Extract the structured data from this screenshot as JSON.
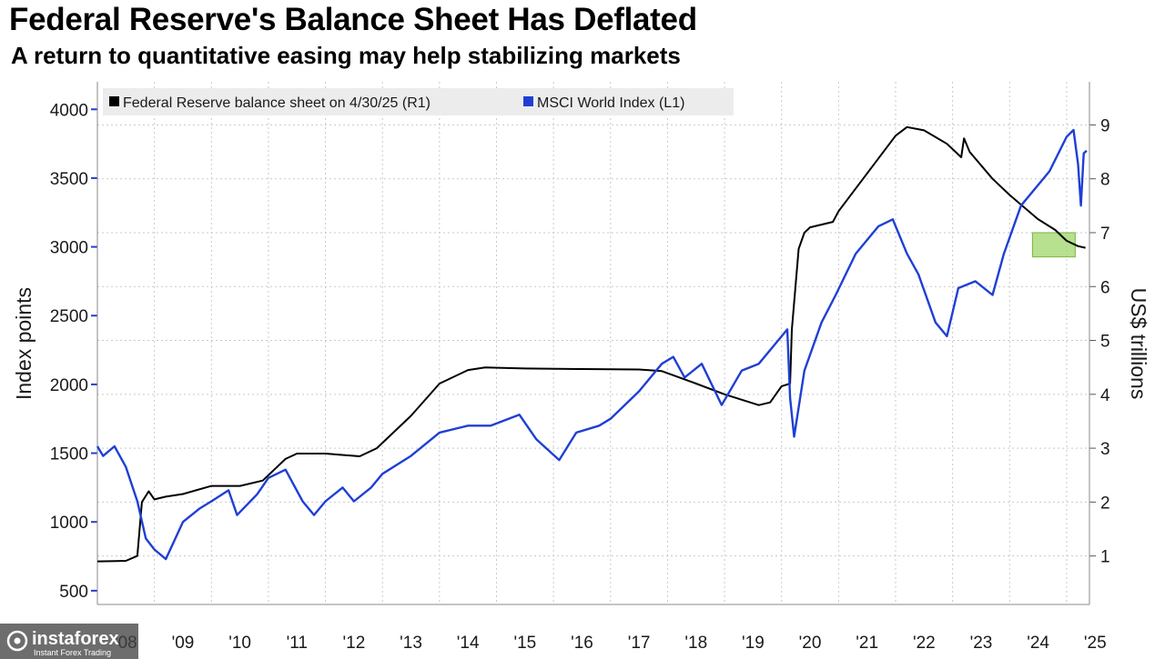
{
  "header": {
    "title": "Federal Reserve's Balance Sheet Has Deflated",
    "subtitle": "A return to quantitative easing may help stabilizing markets"
  },
  "watermark": {
    "brand": "instaforex",
    "tagline": "Instant Forex Trading"
  },
  "chart_data": {
    "type": "line",
    "xlabel": "",
    "x_tick_labels": [
      "'08",
      "'09",
      "'10",
      "'11",
      "'12",
      "'13",
      "'14",
      "'15",
      "'16",
      "'17",
      "'18",
      "'19",
      "'20",
      "'21",
      "'22",
      "'23",
      "'24",
      "'25"
    ],
    "x_range": [
      2008.0,
      2025.4
    ],
    "left_axis": {
      "label": "Index points",
      "range": [
        400,
        4200
      ],
      "ticks": [
        "500",
        "1000",
        "1500",
        "2000",
        "2500",
        "3000",
        "3500",
        "4000"
      ]
    },
    "right_axis": {
      "label": "US$ trillions",
      "range": [
        0.1,
        9.8
      ],
      "ticks": [
        "1",
        "2",
        "3",
        "4",
        "5",
        "6",
        "7",
        "8",
        "9"
      ]
    },
    "grid": true,
    "legend_placement": "top-left",
    "highlight": {
      "x_range": [
        2024.4,
        2025.15
      ],
      "right_value_range": [
        6.55,
        7.0
      ],
      "color": "#9fd66a"
    },
    "series": [
      {
        "name": "Federal Reserve balance sheet on 4/30/25 (R1)",
        "axis": "right",
        "color": "#000000",
        "points": [
          [
            2008.0,
            0.9
          ],
          [
            2008.5,
            0.91
          ],
          [
            2008.7,
            1.0
          ],
          [
            2008.78,
            2.0
          ],
          [
            2008.9,
            2.2
          ],
          [
            2009.0,
            2.05
          ],
          [
            2009.2,
            2.1
          ],
          [
            2009.5,
            2.15
          ],
          [
            2010.0,
            2.3
          ],
          [
            2010.5,
            2.3
          ],
          [
            2010.9,
            2.4
          ],
          [
            2011.3,
            2.8
          ],
          [
            2011.5,
            2.9
          ],
          [
            2012.0,
            2.9
          ],
          [
            2012.6,
            2.85
          ],
          [
            2012.9,
            3.0
          ],
          [
            2013.5,
            3.6
          ],
          [
            2014.0,
            4.2
          ],
          [
            2014.5,
            4.45
          ],
          [
            2014.8,
            4.5
          ],
          [
            2015.5,
            4.48
          ],
          [
            2016.5,
            4.47
          ],
          [
            2017.5,
            4.46
          ],
          [
            2017.9,
            4.43
          ],
          [
            2018.5,
            4.2
          ],
          [
            2019.0,
            4.0
          ],
          [
            2019.6,
            3.8
          ],
          [
            2019.8,
            3.85
          ],
          [
            2020.0,
            4.15
          ],
          [
            2020.15,
            4.2
          ],
          [
            2020.18,
            5.2
          ],
          [
            2020.3,
            6.7
          ],
          [
            2020.4,
            7.0
          ],
          [
            2020.5,
            7.1
          ],
          [
            2020.9,
            7.2
          ],
          [
            2021.0,
            7.4
          ],
          [
            2021.5,
            8.1
          ],
          [
            2022.0,
            8.8
          ],
          [
            2022.2,
            8.96
          ],
          [
            2022.5,
            8.9
          ],
          [
            2022.9,
            8.65
          ],
          [
            2023.15,
            8.4
          ],
          [
            2023.2,
            8.75
          ],
          [
            2023.3,
            8.5
          ],
          [
            2023.7,
            8.0
          ],
          [
            2024.0,
            7.7
          ],
          [
            2024.5,
            7.25
          ],
          [
            2024.8,
            7.05
          ],
          [
            2025.0,
            6.85
          ],
          [
            2025.2,
            6.75
          ],
          [
            2025.33,
            6.72
          ]
        ]
      },
      {
        "name": "MSCI World Index  (L1)",
        "axis": "left",
        "color": "#1f3fd4",
        "points": [
          [
            2008.0,
            1550
          ],
          [
            2008.1,
            1480
          ],
          [
            2008.3,
            1550
          ],
          [
            2008.5,
            1400
          ],
          [
            2008.7,
            1150
          ],
          [
            2008.85,
            880
          ],
          [
            2009.0,
            800
          ],
          [
            2009.2,
            730
          ],
          [
            2009.5,
            1000
          ],
          [
            2009.8,
            1100
          ],
          [
            2010.0,
            1150
          ],
          [
            2010.3,
            1230
          ],
          [
            2010.45,
            1050
          ],
          [
            2010.8,
            1200
          ],
          [
            2011.0,
            1320
          ],
          [
            2011.3,
            1380
          ],
          [
            2011.6,
            1150
          ],
          [
            2011.8,
            1050
          ],
          [
            2012.0,
            1150
          ],
          [
            2012.3,
            1250
          ],
          [
            2012.5,
            1150
          ],
          [
            2012.8,
            1250
          ],
          [
            2013.0,
            1350
          ],
          [
            2013.5,
            1480
          ],
          [
            2014.0,
            1650
          ],
          [
            2014.5,
            1700
          ],
          [
            2014.9,
            1700
          ],
          [
            2015.4,
            1780
          ],
          [
            2015.7,
            1600
          ],
          [
            2016.1,
            1450
          ],
          [
            2016.4,
            1650
          ],
          [
            2016.8,
            1700
          ],
          [
            2017.0,
            1750
          ],
          [
            2017.5,
            1950
          ],
          [
            2017.9,
            2150
          ],
          [
            2018.1,
            2200
          ],
          [
            2018.3,
            2050
          ],
          [
            2018.6,
            2150
          ],
          [
            2018.95,
            1850
          ],
          [
            2019.3,
            2100
          ],
          [
            2019.6,
            2150
          ],
          [
            2019.9,
            2300
          ],
          [
            2020.1,
            2400
          ],
          [
            2020.15,
            1900
          ],
          [
            2020.22,
            1620
          ],
          [
            2020.4,
            2100
          ],
          [
            2020.7,
            2450
          ],
          [
            2020.95,
            2650
          ],
          [
            2021.3,
            2950
          ],
          [
            2021.7,
            3150
          ],
          [
            2021.95,
            3200
          ],
          [
            2022.2,
            2950
          ],
          [
            2022.4,
            2800
          ],
          [
            2022.7,
            2450
          ],
          [
            2022.9,
            2350
          ],
          [
            2023.1,
            2700
          ],
          [
            2023.4,
            2750
          ],
          [
            2023.7,
            2650
          ],
          [
            2023.9,
            2950
          ],
          [
            2024.2,
            3300
          ],
          [
            2024.5,
            3450
          ],
          [
            2024.7,
            3550
          ],
          [
            2025.0,
            3800
          ],
          [
            2025.12,
            3850
          ],
          [
            2025.2,
            3600
          ],
          [
            2025.25,
            3300
          ],
          [
            2025.3,
            3680
          ],
          [
            2025.35,
            3700
          ]
        ]
      }
    ]
  }
}
